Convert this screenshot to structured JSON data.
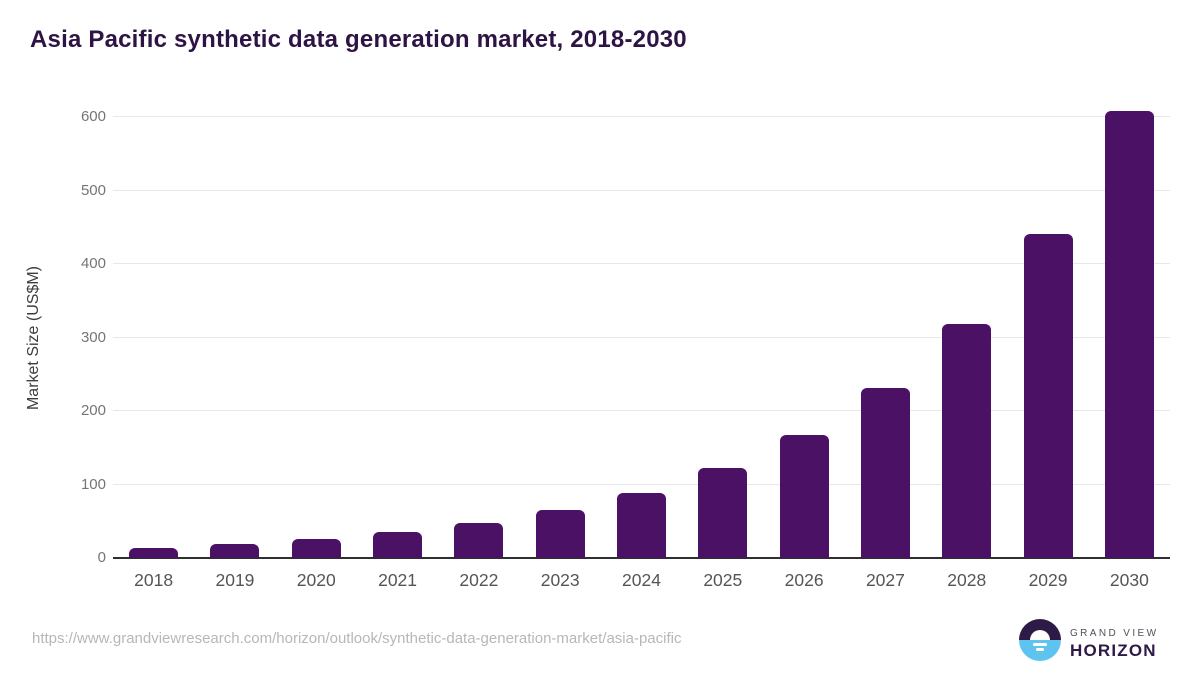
{
  "title": "Asia Pacific synthetic data generation market, 2018-2030",
  "chart_data": {
    "type": "bar",
    "title": "Asia Pacific synthetic data generation market, 2018-2030",
    "categories": [
      "2018",
      "2019",
      "2020",
      "2021",
      "2022",
      "2023",
      "2024",
      "2025",
      "2026",
      "2027",
      "2028",
      "2029",
      "2030"
    ],
    "values": [
      14,
      19,
      26,
      35,
      48,
      66,
      89,
      123,
      168,
      231,
      319,
      441,
      608
    ],
    "xlabel": "",
    "ylabel": "Market Size (US$M)",
    "ylim": [
      0,
      600
    ],
    "yticks": [
      0,
      100,
      200,
      300,
      400,
      500,
      600
    ],
    "grid": "horizontal",
    "legend": "none"
  },
  "colors": {
    "bar": "#4a1164",
    "title": "#2e1444",
    "gridline": "#e8e8e8",
    "axis_line": "#2f2f2f",
    "tick_label": "#757575",
    "logo_purple": "#2e1a47",
    "logo_blue": "#5ec4ef"
  },
  "footer": {
    "source_url": "https://www.grandviewresearch.com/horizon/outlook/synthetic-data-generation-market/asia-pacific",
    "logo": {
      "line1": "GRAND VIEW",
      "line2": "HORIZON"
    }
  }
}
